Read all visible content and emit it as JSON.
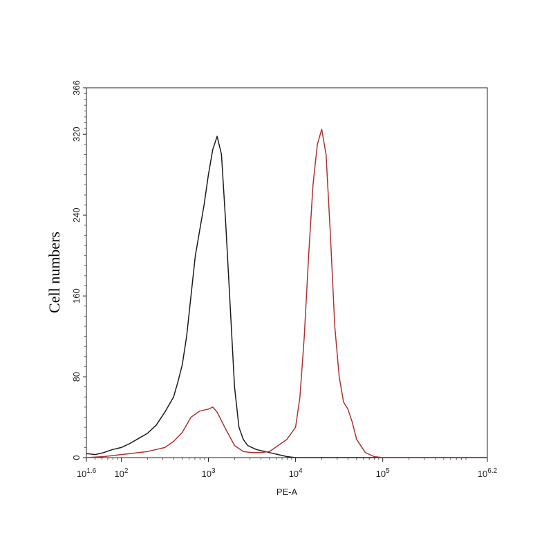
{
  "chart_data": {
    "type": "line",
    "title": "",
    "xlabel": "PE-A",
    "ylabel": "Cell numbers",
    "x_scale": "log10",
    "xlim": [
      1.6,
      6.2
    ],
    "ylim": [
      0,
      366
    ],
    "x_ticks": [
      {
        "value": 1.6,
        "base": "10",
        "exp": "1.6"
      },
      {
        "value": 2,
        "base": "10",
        "exp": "2"
      },
      {
        "value": 3,
        "base": "10",
        "exp": "3"
      },
      {
        "value": 4,
        "base": "10",
        "exp": "4"
      },
      {
        "value": 5,
        "base": "10",
        "exp": "5"
      },
      {
        "value": 6.2,
        "base": "10",
        "exp": "6.2"
      }
    ],
    "y_ticks": [
      0,
      80,
      160,
      240,
      320,
      366
    ],
    "grid": false,
    "legend": "none",
    "series": [
      {
        "color": "#1a1a1a",
        "x": [
          1.6,
          1.7,
          1.8,
          1.9,
          2.0,
          2.1,
          2.2,
          2.3,
          2.4,
          2.5,
          2.6,
          2.65,
          2.7,
          2.75,
          2.8,
          2.85,
          2.9,
          2.95,
          3.0,
          3.05,
          3.1,
          3.15,
          3.2,
          3.25,
          3.3,
          3.35,
          3.4,
          3.45,
          3.5,
          3.55,
          3.6,
          3.7,
          3.8,
          3.9,
          4.0,
          6.2
        ],
        "y": [
          4,
          3,
          5,
          8,
          10,
          14,
          19,
          24,
          32,
          45,
          60,
          75,
          92,
          120,
          160,
          200,
          225,
          250,
          280,
          305,
          318,
          300,
          230,
          150,
          70,
          30,
          18,
          12,
          10,
          8,
          7,
          5,
          3,
          1,
          0,
          0
        ]
      },
      {
        "color": "#b03030",
        "x": [
          1.6,
          1.8,
          1.9,
          2.0,
          2.1,
          2.2,
          2.3,
          2.4,
          2.5,
          2.6,
          2.7,
          2.8,
          2.9,
          3.0,
          3.05,
          3.1,
          3.2,
          3.3,
          3.4,
          3.5,
          3.6,
          3.7,
          3.8,
          3.9,
          4.0,
          4.05,
          4.1,
          4.15,
          4.2,
          4.25,
          4.3,
          4.35,
          4.4,
          4.45,
          4.5,
          4.55,
          4.6,
          4.65,
          4.7,
          4.8,
          4.9,
          5.0,
          5.1,
          6.2
        ],
        "y": [
          0,
          1,
          2,
          3,
          4,
          5,
          6,
          8,
          10,
          16,
          25,
          40,
          46,
          48,
          50,
          45,
          28,
          12,
          6,
          5,
          5,
          6,
          12,
          18,
          30,
          60,
          120,
          200,
          270,
          310,
          325,
          300,
          220,
          130,
          80,
          55,
          48,
          35,
          18,
          5,
          1,
          0,
          0,
          0
        ]
      }
    ]
  }
}
